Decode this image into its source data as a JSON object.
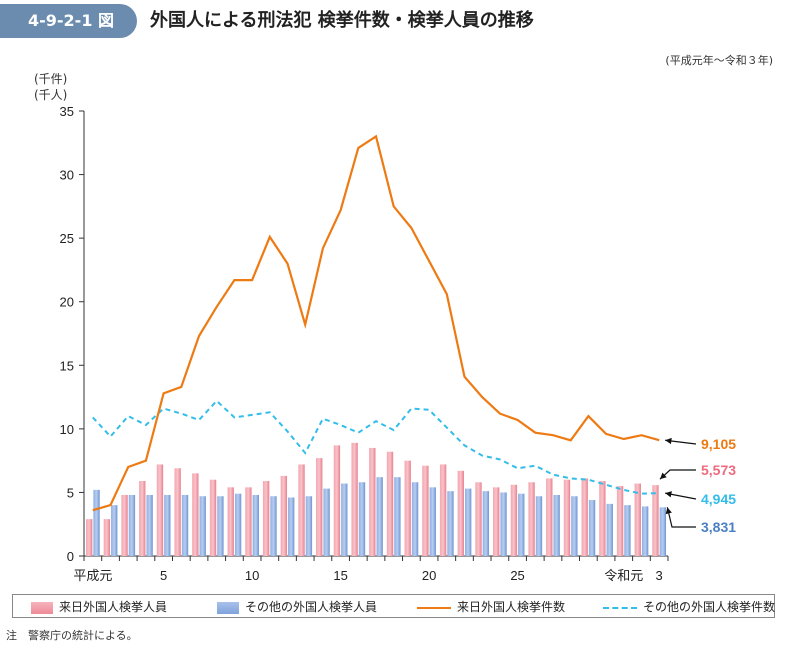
{
  "header": {
    "figure_number": "4-9-2-1 図",
    "title": "外国人による刑法犯 検挙件数・検挙人員の推移",
    "period": "(平成元年～令和３年)"
  },
  "units": {
    "line1": "(千件)",
    "line2": "(千人)"
  },
  "note": "注　警察庁の統計による。",
  "colors": {
    "bar_arrivals": "#ee8a97",
    "bar_others": "#7fa3db",
    "line_arrivals": "#ee7a14",
    "line_others": "#33bde9"
  },
  "chart_data": {
    "type": "bar+line",
    "title": "外国人による刑法犯 検挙件数・検挙人員の推移",
    "ylim": [
      0,
      35
    ],
    "yticks": [
      0,
      5,
      10,
      15,
      20,
      25,
      30,
      35
    ],
    "ylabel": "(千件)(千人)",
    "categories": [
      "平成元",
      "2",
      "3",
      "4",
      "5",
      "6",
      "7",
      "8",
      "9",
      "10",
      "11",
      "12",
      "13",
      "14",
      "15",
      "16",
      "17",
      "18",
      "19",
      "20",
      "21",
      "22",
      "23",
      "24",
      "25",
      "26",
      "27",
      "28",
      "29",
      "30",
      "令和元",
      "2",
      "3"
    ],
    "xtick_labels": [
      {
        "index": 0,
        "label": "平成元"
      },
      {
        "index": 4,
        "label": "5"
      },
      {
        "index": 9,
        "label": "10"
      },
      {
        "index": 14,
        "label": "15"
      },
      {
        "index": 19,
        "label": "20"
      },
      {
        "index": 24,
        "label": "25"
      },
      {
        "index": 30,
        "label": "令和元"
      },
      {
        "index": 32,
        "label": "3"
      }
    ],
    "series": [
      {
        "name": "来日外国人検挙人員",
        "kind": "bar",
        "values": [
          2.9,
          2.9,
          4.8,
          5.9,
          7.2,
          6.9,
          6.5,
          6.0,
          5.4,
          5.4,
          5.9,
          6.3,
          7.2,
          7.7,
          8.7,
          8.9,
          8.5,
          8.2,
          7.5,
          7.1,
          7.2,
          6.7,
          5.8,
          5.4,
          5.6,
          5.8,
          6.1,
          6.0,
          6.1,
          5.9,
          5.5,
          5.7,
          5.573
        ]
      },
      {
        "name": "その他の外国人検挙人員",
        "kind": "bar",
        "values": [
          5.2,
          4.0,
          4.8,
          4.8,
          4.8,
          4.8,
          4.7,
          4.7,
          4.9,
          4.8,
          4.7,
          4.6,
          4.7,
          5.3,
          5.7,
          5.8,
          6.2,
          6.2,
          5.8,
          5.4,
          5.1,
          5.3,
          5.1,
          5.0,
          4.9,
          4.7,
          4.8,
          4.7,
          4.4,
          4.1,
          4.0,
          3.9,
          3.831
        ]
      },
      {
        "name": "来日外国人検挙件数",
        "kind": "line",
        "values": [
          3.6,
          4.0,
          7.0,
          7.5,
          12.8,
          13.3,
          17.3,
          19.6,
          21.7,
          21.7,
          25.1,
          23.0,
          18.2,
          24.2,
          27.2,
          32.1,
          33.0,
          27.5,
          25.8,
          23.2,
          20.6,
          14.1,
          12.5,
          11.2,
          10.7,
          9.7,
          9.5,
          9.1,
          11.0,
          9.6,
          9.2,
          9.5,
          9.105
        ]
      },
      {
        "name": "その他の外国人検挙件数",
        "kind": "dashed-line",
        "values": [
          10.9,
          9.4,
          11.0,
          10.3,
          11.6,
          11.2,
          10.7,
          12.2,
          10.9,
          11.1,
          11.3,
          9.8,
          8.1,
          10.8,
          10.3,
          9.7,
          10.6,
          9.9,
          11.6,
          11.5,
          10.1,
          8.7,
          7.9,
          7.6,
          6.9,
          7.1,
          6.4,
          6.1,
          6.0,
          5.6,
          5.2,
          4.9,
          4.945
        ]
      }
    ],
    "end_labels": [
      {
        "series": "来日外国人検挙件数",
        "text": "9,105"
      },
      {
        "series": "来日外国人検挙人員",
        "text": "5,573"
      },
      {
        "series": "その他の外国人検挙件数",
        "text": "4,945"
      },
      {
        "series": "その他の外国人検挙人員",
        "text": "3,831"
      }
    ],
    "legend": [
      "来日外国人検挙人員",
      "その他の外国人検挙人員",
      "来日外国人検挙件数",
      "その他の外国人検挙件数"
    ]
  }
}
